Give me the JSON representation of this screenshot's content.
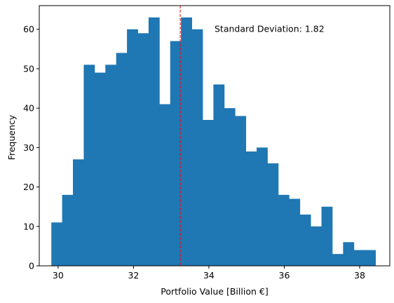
{
  "chart_data": {
    "type": "bar",
    "chart_kind": "histogram",
    "title": "",
    "xlabel": "Portfolio Value [Billion €]",
    "ylabel": "Frequency",
    "xlim": [
      29.5,
      38.8
    ],
    "ylim": [
      0,
      66
    ],
    "xticks": [
      30,
      32,
      34,
      36,
      38
    ],
    "yticks": [
      0,
      10,
      20,
      30,
      40,
      50,
      60
    ],
    "grid": false,
    "legend": "none",
    "bin_start": 29.82,
    "bin_width": 0.2867,
    "values": [
      11,
      18,
      27,
      51,
      49,
      51,
      54,
      60,
      59,
      63,
      41,
      57,
      63,
      60,
      37,
      46,
      40,
      38,
      29,
      30,
      26,
      18,
      17,
      13,
      10,
      15,
      3,
      6,
      4,
      4
    ],
    "bar_color": "#1f77b4",
    "mean_line": {
      "x": 33.24,
      "color": "#ff0000",
      "style": "dashed"
    },
    "annotation": {
      "text": "Standard Deviation: 1.82",
      "x": 34.15,
      "y": 60
    }
  }
}
